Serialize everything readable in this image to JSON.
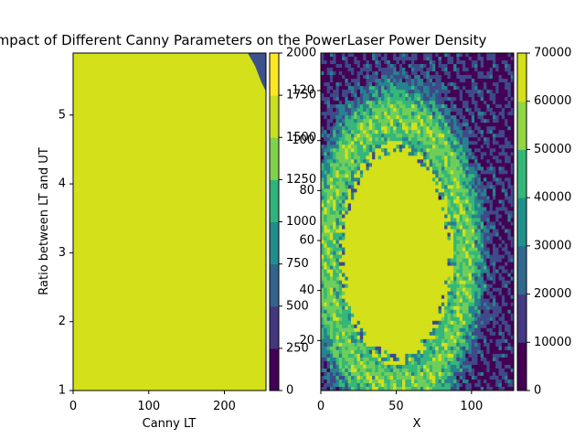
{
  "colors": {
    "viridis": [
      "#440154",
      "#472c7a",
      "#3b528b",
      "#2c728e",
      "#21918c",
      "#28ae80",
      "#5ec962",
      "#addc30",
      "#d3e21b",
      "#fde725"
    ],
    "left_fill": "#d3e01a",
    "left_corner": "#3b528b",
    "hm_bands": [
      "#440154",
      "#3e4a89",
      "#26828e",
      "#35b779",
      "#6ece58",
      "#d3e01a"
    ]
  },
  "chart_data": [
    {
      "type": "heatmap",
      "title": "Impact of Different Canny Parameters on the Power",
      "xlabel": "Canny LT",
      "ylabel": "Ratio between LT and UT",
      "xlim": [
        0,
        255
      ],
      "ylim": [
        1,
        5.9
      ],
      "xticks": [
        "0",
        "100",
        "200"
      ],
      "xtick_values": [
        0,
        100,
        200
      ],
      "yticks": [
        "1",
        "2",
        "3",
        "4",
        "5"
      ],
      "ytick_values": [
        1,
        2,
        3,
        4,
        5
      ],
      "fill_level": 2000,
      "corner_region": {
        "x_from": 232,
        "x_to": 255,
        "y_from": 5.35,
        "y_to": 5.9,
        "level": 1000
      },
      "colorbar": {
        "ticks": [
          "0",
          "250",
          "500",
          "750",
          "1000",
          "1250",
          "1500",
          "1750",
          "2000"
        ],
        "values": [
          0,
          250,
          500,
          750,
          1000,
          1250,
          1500,
          1750,
          2000
        ],
        "range": [
          0,
          2000
        ]
      },
      "overlapping_axis": {
        "ticks": [
          "20",
          "40",
          "60",
          "80",
          "100",
          "120"
        ],
        "values": [
          20,
          40,
          60,
          80,
          100,
          120
        ],
        "range": [
          0,
          135
        ]
      }
    },
    {
      "type": "heatmap",
      "title": "Laser Power Density",
      "xlabel": "X",
      "ylabel": "",
      "xlim": [
        0,
        128
      ],
      "ylim": [
        0,
        128
      ],
      "xticks": [
        "0",
        "50",
        "100"
      ],
      "xtick_values": [
        0,
        50,
        100
      ],
      "hotspot": {
        "center_x": 50,
        "center_y": 52,
        "radius_x": 34,
        "radius_y": 38,
        "level": 65000
      },
      "colorbar": {
        "ticks": [
          "0",
          "10000",
          "20000",
          "30000",
          "40000",
          "50000",
          "60000",
          "70000"
        ],
        "values": [
          0,
          10000,
          20000,
          30000,
          40000,
          50000,
          60000,
          70000
        ],
        "range": [
          0,
          70000
        ]
      }
    }
  ]
}
